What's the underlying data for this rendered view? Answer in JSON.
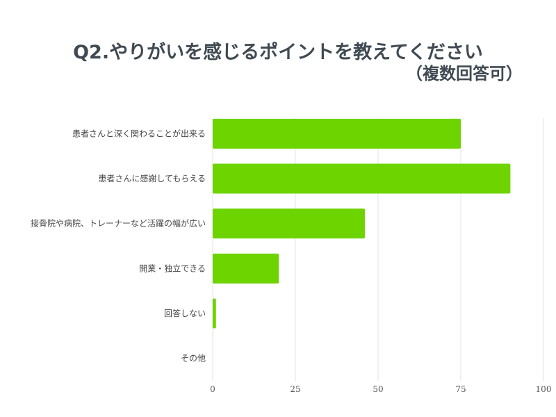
{
  "chart_data": {
    "type": "bar",
    "orientation": "horizontal",
    "title": "Q2.やりがいを感じるポイントを教えてください",
    "subtitle": "（複数回答可）",
    "categories": [
      "患者さんと深く関わることが出来る",
      "患者さんに感謝してもらえる",
      "接骨院や病院、トレーナーなど活躍の幅が広い",
      "開業・独立できる",
      "回答しない",
      "その他"
    ],
    "values": [
      75,
      90,
      46,
      20,
      1,
      0
    ],
    "xlim": [
      0,
      100
    ],
    "x_ticks": [
      0,
      25,
      50,
      75,
      100
    ],
    "grid": true,
    "legend": "none",
    "bar_color": "#6dd400",
    "grid_color": "#e3e3e3",
    "title_color": "#3f4a52"
  }
}
